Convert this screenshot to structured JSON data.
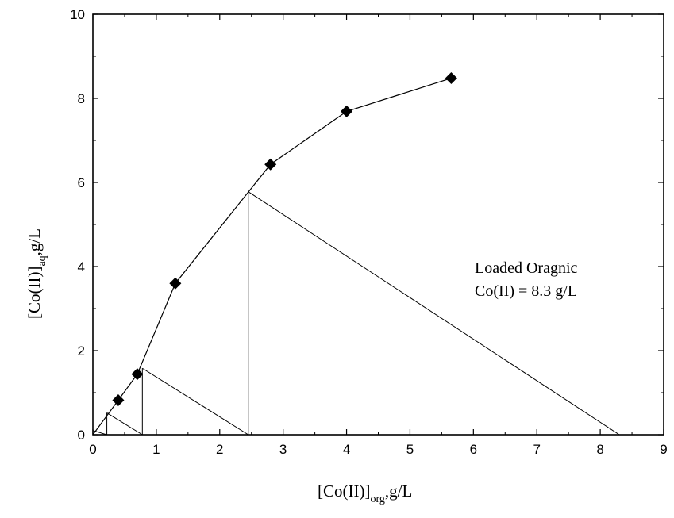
{
  "chart_data": {
    "type": "scatter",
    "xlabel": {
      "main": "[Co(II)]",
      "sub": "org",
      "unit": ",g/L"
    },
    "ylabel": {
      "main": "[Co(II)]",
      "sub": "aq",
      "unit": ",g/L"
    },
    "xlim": [
      0,
      9
    ],
    "ylim": [
      0,
      10
    ],
    "x_ticks": [
      "0",
      "1",
      "2",
      "3",
      "4",
      "5",
      "6",
      "7",
      "8",
      "9"
    ],
    "y_ticks": [
      "0",
      "2",
      "4",
      "6",
      "8",
      "10"
    ],
    "grid": false,
    "series": [
      {
        "marker": "diamond",
        "color": "#000000",
        "points": [
          [
            0.4,
            0.82
          ],
          [
            0.7,
            1.44
          ],
          [
            1.3,
            3.6
          ],
          [
            2.8,
            6.43
          ],
          [
            4.0,
            7.69
          ],
          [
            5.65,
            8.48
          ]
        ],
        "curve": [
          [
            0.0,
            0.0
          ],
          [
            0.4,
            0.82
          ],
          [
            0.7,
            1.44
          ],
          [
            1.3,
            3.6
          ],
          [
            2.8,
            6.43
          ],
          [
            4.0,
            7.69
          ],
          [
            5.65,
            8.48
          ]
        ]
      }
    ],
    "mccabe_thiele": {
      "operating_line": [
        [
          8.3,
          0.0
        ],
        [
          2.45,
          5.78
        ]
      ],
      "segments": [
        [
          [
            2.45,
            0.0
          ],
          [
            2.45,
            5.78
          ]
        ],
        [
          [
            2.45,
            0.0
          ],
          [
            0.78,
            1.58
          ]
        ],
        [
          [
            0.78,
            0.0
          ],
          [
            0.78,
            1.58
          ]
        ],
        [
          [
            0.78,
            0.0
          ],
          [
            0.22,
            0.52
          ]
        ],
        [
          [
            0.22,
            0.0
          ],
          [
            0.22,
            0.52
          ]
        ],
        [
          [
            0.22,
            0.0
          ],
          [
            0.0,
            0.1
          ]
        ]
      ]
    },
    "annotations": [
      "Loaded Oragnic",
      "Co(II) = 8.3 g/L"
    ]
  }
}
